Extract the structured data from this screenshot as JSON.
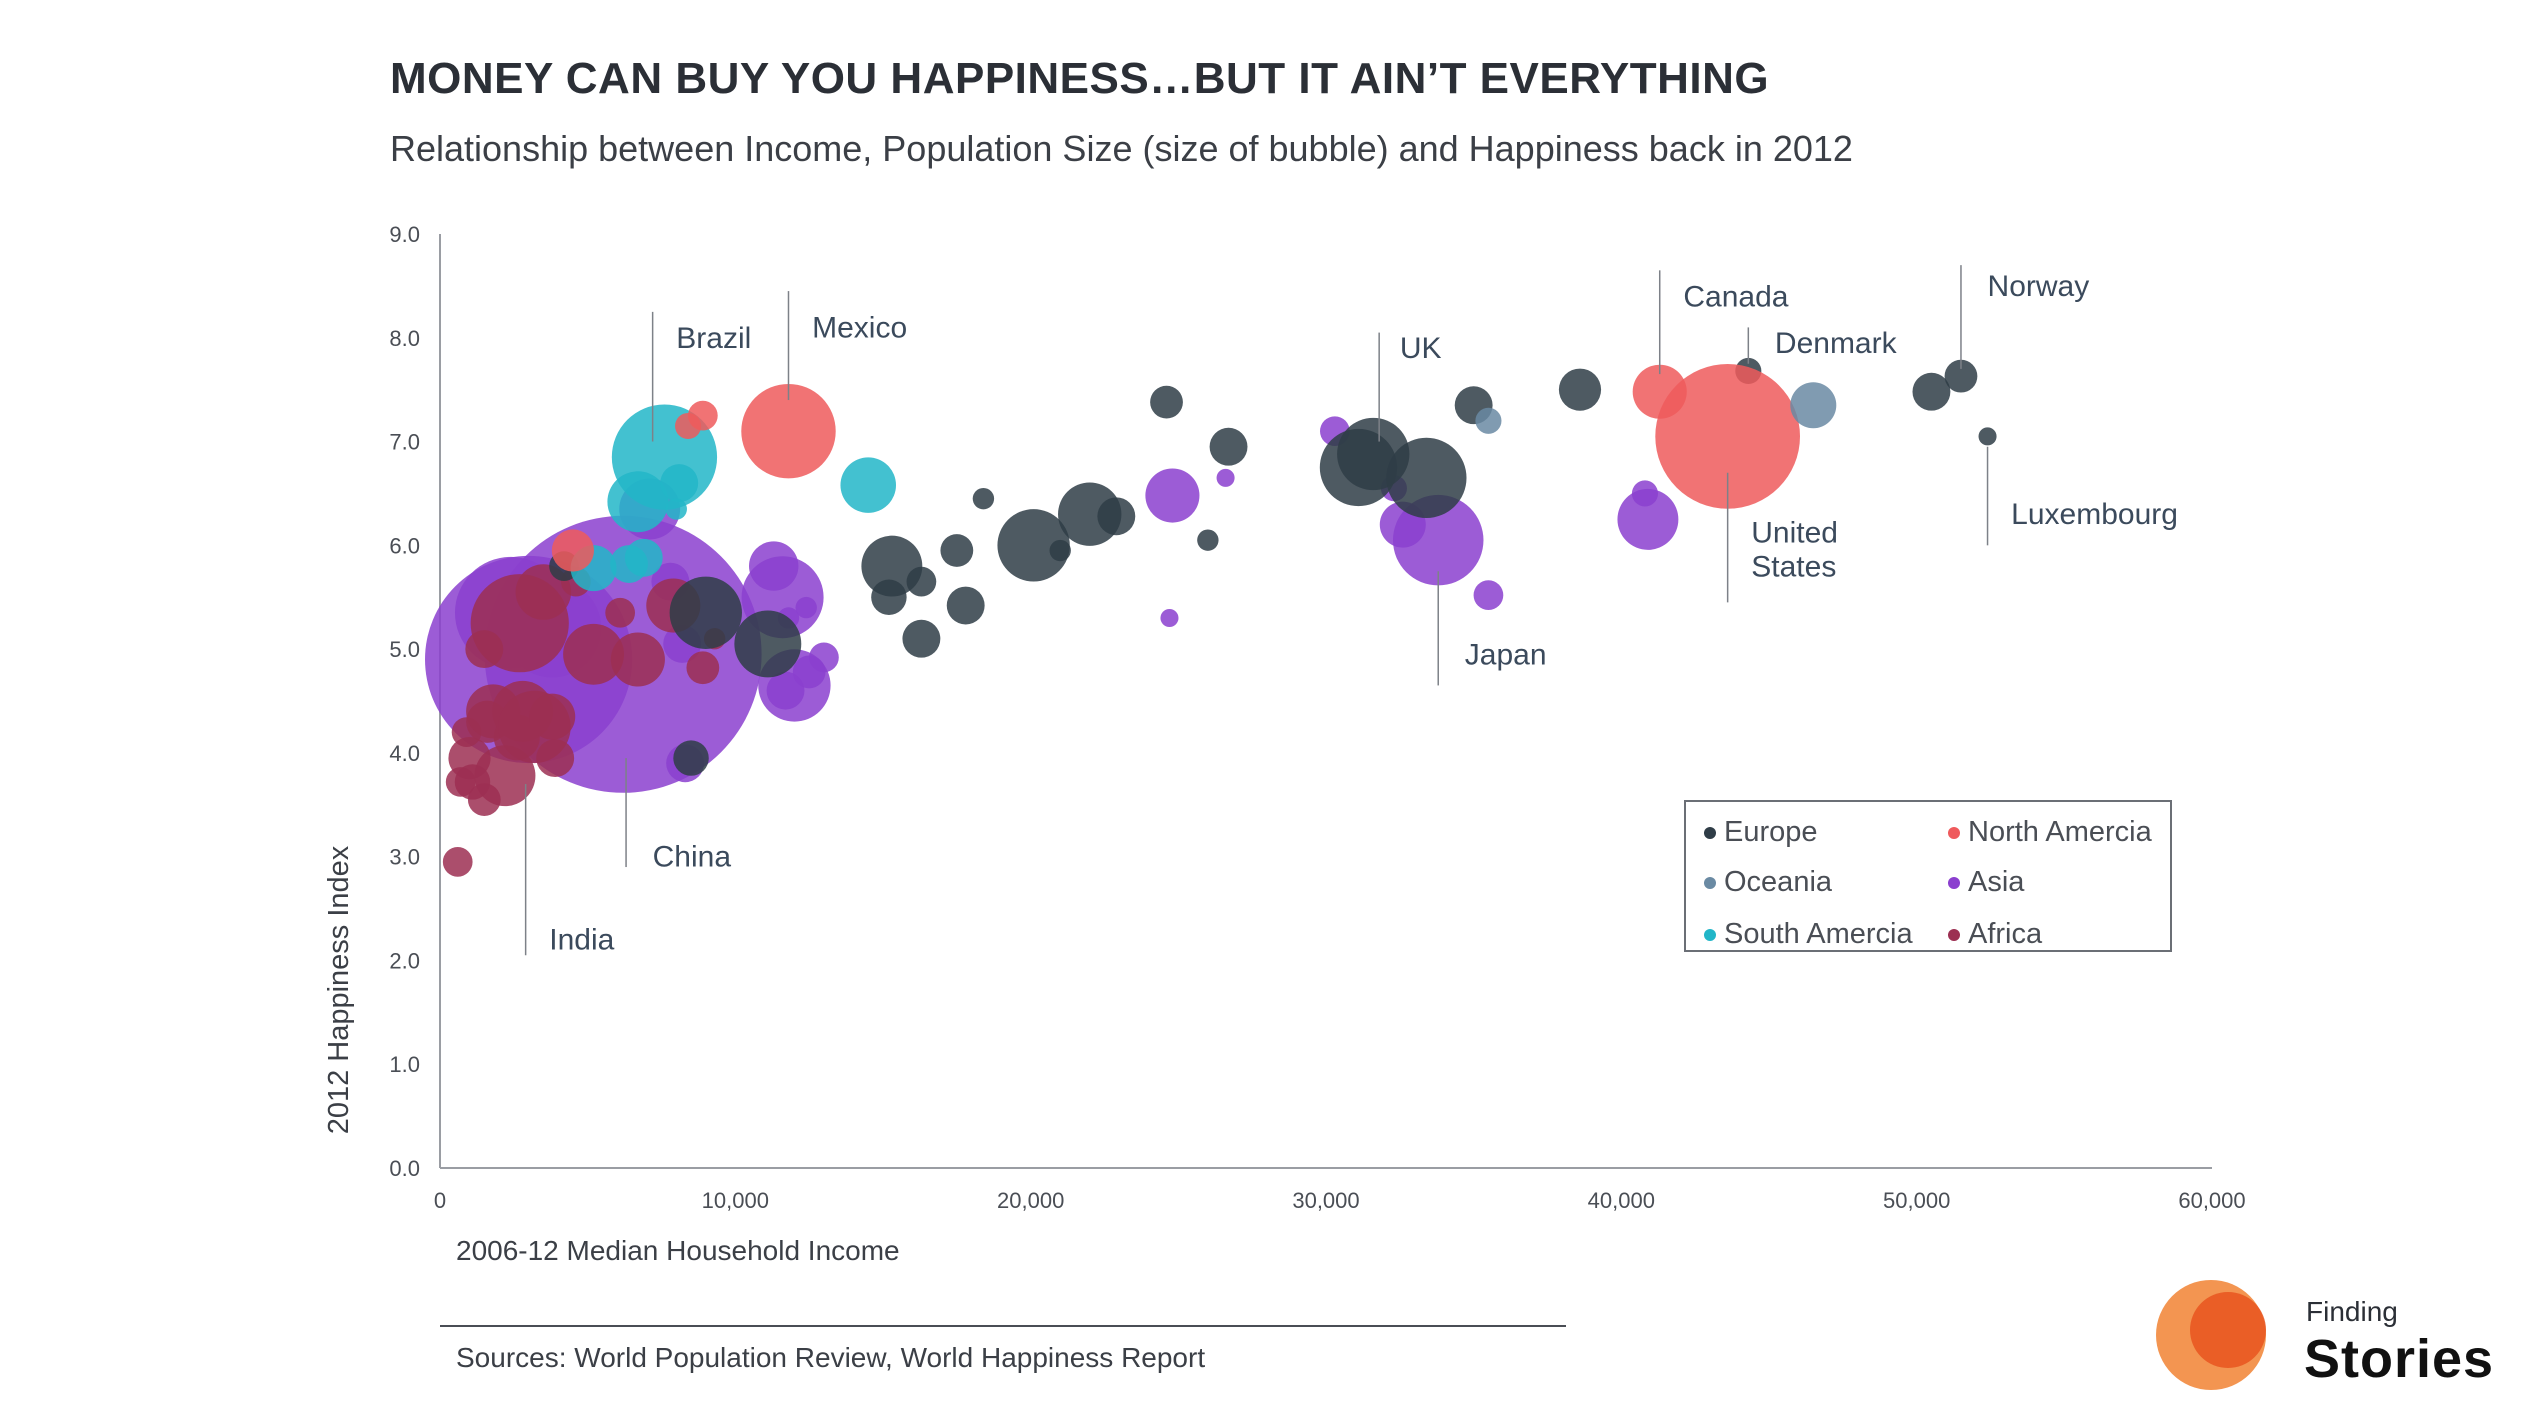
{
  "header": {
    "title": "MONEY CAN BUY YOU HAPPINESS…BUT IT AIN’T EVERYTHING",
    "subtitle": "Relationship between Income, Population Size (size of bubble) and Happiness back in 2012"
  },
  "footer": {
    "sources": "Sources: World Population Review, World Happiness Report",
    "logo_top": "Finding",
    "logo_bottom": "Stories"
  },
  "colors": {
    "Europe": "#2f3d47",
    "North Amercia": "#ef5a5c",
    "Oceania": "#6a8aa3",
    "Asia": "#8b3fcf",
    "South Amercia": "#22b6c8",
    "Africa": "#9c2f52"
  },
  "chart_data": {
    "type": "scatter",
    "title": "MONEY CAN BUY YOU HAPPINESS…BUT IT AIN’T EVERYTHING",
    "xlabel": "2006-12 Median Household Income",
    "ylabel": "2012 Happiness Index",
    "xlim": [
      0,
      60000
    ],
    "ylim": [
      0,
      9
    ],
    "x_ticks": [
      "0",
      "10,000",
      "20,000",
      "30,000",
      "40,000",
      "50,000",
      "60,000"
    ],
    "y_ticks": [
      "0.0",
      "1.0",
      "2.0",
      "3.0",
      "4.0",
      "5.0",
      "6.0",
      "7.0",
      "8.0",
      "9.0"
    ],
    "legend": {
      "position": "bottom-right",
      "entries": [
        "Europe",
        "North Amercia",
        "Oceania",
        "Asia",
        "South Amercia",
        "Africa"
      ]
    },
    "size_meaning": "Population Size",
    "series": [
      {
        "name": "Europe",
        "points": [
          {
            "x": 9000,
            "y": 5.35,
            "size": 3
          },
          {
            "x": 11100,
            "y": 5.05,
            "size": 2.5
          },
          {
            "x": 8500,
            "y": 3.95,
            "size": 0.5
          },
          {
            "x": 15300,
            "y": 5.8,
            "size": 2
          },
          {
            "x": 15200,
            "y": 5.5,
            "size": 0.5
          },
          {
            "x": 16300,
            "y": 5.65,
            "size": 0.3
          },
          {
            "x": 16300,
            "y": 5.1,
            "size": 0.6
          },
          {
            "x": 17500,
            "y": 5.95,
            "size": 0.4
          },
          {
            "x": 17800,
            "y": 5.42,
            "size": 0.6
          },
          {
            "x": 18400,
            "y": 6.45,
            "size": 0.1
          },
          {
            "x": 20100,
            "y": 6.0,
            "size": 3
          },
          {
            "x": 21000,
            "y": 5.95,
            "size": 0.1
          },
          {
            "x": 22000,
            "y": 6.3,
            "size": 2.2
          },
          {
            "x": 22900,
            "y": 6.28,
            "size": 0.6
          },
          {
            "x": 24600,
            "y": 7.38,
            "size": 0.4
          },
          {
            "x": 26000,
            "y": 6.05,
            "size": 0.1
          },
          {
            "x": 26700,
            "y": 6.95,
            "size": 0.6
          },
          {
            "x": 31100,
            "y": 6.75,
            "size": 3.5
          },
          {
            "x": 31600,
            "y": 6.88,
            "size": 3
          },
          {
            "x": 33400,
            "y": 6.65,
            "size": 3.8
          },
          {
            "x": 35000,
            "y": 7.35,
            "size": 0.6
          },
          {
            "x": 38600,
            "y": 7.5,
            "size": 0.8
          },
          {
            "x": 44300,
            "y": 7.68,
            "size": 0.2
          },
          {
            "x": 50500,
            "y": 7.48,
            "size": 0.6
          },
          {
            "x": 51500,
            "y": 7.63,
            "size": 0.4
          },
          {
            "x": 52400,
            "y": 7.05,
            "size": 0.05
          },
          {
            "x": 4200,
            "y": 5.8,
            "size": 0.3
          }
        ]
      },
      {
        "name": "North Amercia",
        "points": [
          {
            "x": 11800,
            "y": 7.1,
            "size": 5.5
          },
          {
            "x": 41300,
            "y": 7.48,
            "size": 1.5
          },
          {
            "x": 43600,
            "y": 7.05,
            "size": 14
          },
          {
            "x": 8900,
            "y": 7.25,
            "size": 0.3
          },
          {
            "x": 8400,
            "y": 7.15,
            "size": 0.2
          },
          {
            "x": 4500,
            "y": 5.95,
            "size": 0.8
          }
        ]
      },
      {
        "name": "Oceania",
        "points": [
          {
            "x": 46500,
            "y": 7.35,
            "size": 1
          },
          {
            "x": 35500,
            "y": 7.2,
            "size": 0.2
          }
        ]
      },
      {
        "name": "Asia",
        "points": [
          {
            "x": 3000,
            "y": 4.9,
            "size": 30
          },
          {
            "x": 6200,
            "y": 4.95,
            "size": 55
          },
          {
            "x": 2400,
            "y": 5.35,
            "size": 8
          },
          {
            "x": 3800,
            "y": 5.2,
            "size": 6
          },
          {
            "x": 7100,
            "y": 6.35,
            "size": 2
          },
          {
            "x": 7800,
            "y": 5.65,
            "size": 0.6
          },
          {
            "x": 8200,
            "y": 5.05,
            "size": 0.6
          },
          {
            "x": 8300,
            "y": 3.9,
            "size": 0.6
          },
          {
            "x": 11300,
            "y": 5.8,
            "size": 1.2
          },
          {
            "x": 11600,
            "y": 5.5,
            "size": 4
          },
          {
            "x": 11800,
            "y": 5.3,
            "size": 0.1
          },
          {
            "x": 12400,
            "y": 5.4,
            "size": 0.1
          },
          {
            "x": 11700,
            "y": 4.6,
            "size": 0.6
          },
          {
            "x": 12000,
            "y": 4.65,
            "size": 3
          },
          {
            "x": 12500,
            "y": 4.78,
            "size": 0.4
          },
          {
            "x": 13000,
            "y": 4.92,
            "size": 0.3
          },
          {
            "x": 24800,
            "y": 6.48,
            "size": 1.5
          },
          {
            "x": 24700,
            "y": 5.3,
            "size": 0.05
          },
          {
            "x": 26600,
            "y": 6.65,
            "size": 0.05
          },
          {
            "x": 30300,
            "y": 7.1,
            "size": 0.3
          },
          {
            "x": 32300,
            "y": 6.55,
            "size": 0.2
          },
          {
            "x": 32600,
            "y": 6.2,
            "size": 1
          },
          {
            "x": 33800,
            "y": 6.05,
            "size": 5
          },
          {
            "x": 35500,
            "y": 5.52,
            "size": 0.3
          },
          {
            "x": 40900,
            "y": 6.25,
            "size": 2
          },
          {
            "x": 40800,
            "y": 6.5,
            "size": 0.2
          }
        ]
      },
      {
        "name": "South Amercia",
        "points": [
          {
            "x": 7600,
            "y": 6.85,
            "size": 7
          },
          {
            "x": 6700,
            "y": 6.42,
            "size": 2
          },
          {
            "x": 8100,
            "y": 6.6,
            "size": 0.6
          },
          {
            "x": 8000,
            "y": 6.35,
            "size": 0.1
          },
          {
            "x": 5200,
            "y": 5.78,
            "size": 1
          },
          {
            "x": 6400,
            "y": 5.82,
            "size": 0.6
          },
          {
            "x": 6900,
            "y": 5.88,
            "size": 0.6
          },
          {
            "x": 14500,
            "y": 6.58,
            "size": 1.6
          }
        ]
      },
      {
        "name": "Africa",
        "points": [
          {
            "x": 600,
            "y": 2.95,
            "size": 0.3
          },
          {
            "x": 700,
            "y": 3.72,
            "size": 0.3
          },
          {
            "x": 1100,
            "y": 3.72,
            "size": 0.5
          },
          {
            "x": 1500,
            "y": 3.55,
            "size": 0.4
          },
          {
            "x": 1000,
            "y": 3.95,
            "size": 0.8
          },
          {
            "x": 900,
            "y": 4.2,
            "size": 0.3
          },
          {
            "x": 1600,
            "y": 4.3,
            "size": 0.8
          },
          {
            "x": 1800,
            "y": 4.4,
            "size": 1.5
          },
          {
            "x": 2200,
            "y": 3.78,
            "size": 2
          },
          {
            "x": 2600,
            "y": 4.15,
            "size": 1
          },
          {
            "x": 2800,
            "y": 4.4,
            "size": 2
          },
          {
            "x": 3200,
            "y": 4.25,
            "size": 3
          },
          {
            "x": 3800,
            "y": 4.35,
            "size": 1
          },
          {
            "x": 3900,
            "y": 3.95,
            "size": 0.6
          },
          {
            "x": 2700,
            "y": 5.25,
            "size": 6
          },
          {
            "x": 3500,
            "y": 5.55,
            "size": 1.6
          },
          {
            "x": 1500,
            "y": 5.0,
            "size": 0.6
          },
          {
            "x": 5200,
            "y": 4.95,
            "size": 2
          },
          {
            "x": 6700,
            "y": 4.9,
            "size": 1.5
          },
          {
            "x": 7900,
            "y": 5.42,
            "size": 1.5
          },
          {
            "x": 8900,
            "y": 4.82,
            "size": 0.4
          },
          {
            "x": 6100,
            "y": 5.35,
            "size": 0.3
          },
          {
            "x": 9300,
            "y": 5.1,
            "size": 0.1
          },
          {
            "x": 4600,
            "y": 5.65,
            "size": 0.3
          }
        ]
      }
    ],
    "annotations": [
      {
        "label": "Brazil",
        "x": 7200,
        "y": 8.0
      },
      {
        "label": "Mexico",
        "x": 12200,
        "y": 8.1
      },
      {
        "label": "UK",
        "x": 32500,
        "y": 7.9
      },
      {
        "label": "Canada",
        "x": 42000,
        "y": 8.3
      },
      {
        "label": "Denmark",
        "x": 45000,
        "y": 7.85
      },
      {
        "label": "Norway",
        "x": 52000,
        "y": 8.4
      },
      {
        "label": "Luxembourg",
        "x": 53000,
        "y": 6.2
      },
      {
        "label": "United States",
        "x": 44600,
        "y": 5.9
      },
      {
        "label": "Japan",
        "x": 34200,
        "y": 4.95
      },
      {
        "label": "China",
        "x": 6500,
        "y": 3.0
      },
      {
        "label": "India",
        "x": 3700,
        "y": 2.2
      }
    ]
  }
}
